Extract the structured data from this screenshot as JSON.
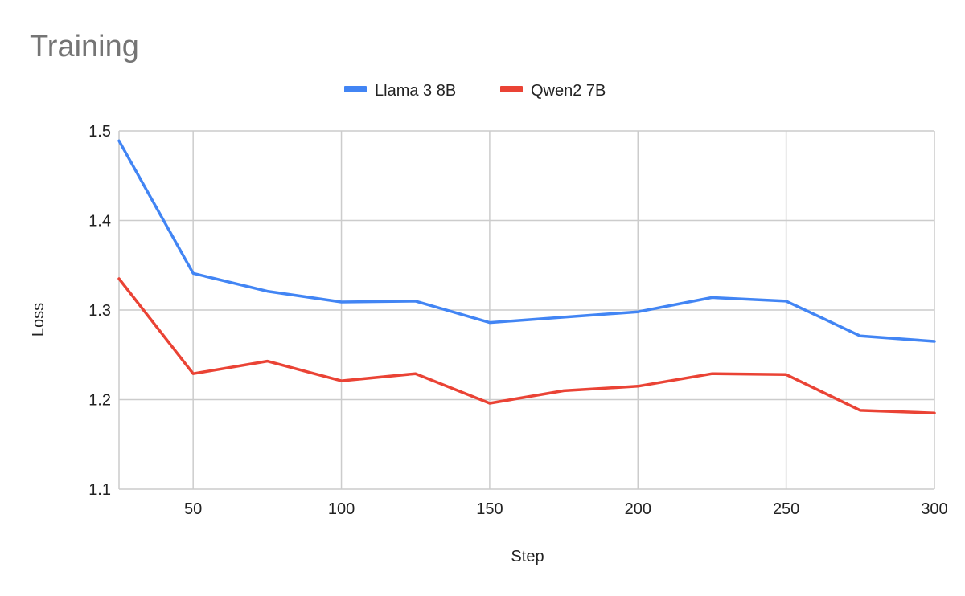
{
  "chart_data": {
    "type": "line",
    "title": "Training",
    "xlabel": "Step",
    "ylabel": "Loss",
    "x": [
      25,
      50,
      75,
      100,
      125,
      150,
      175,
      200,
      225,
      250,
      275,
      300
    ],
    "xlim": [
      25,
      300
    ],
    "ylim": [
      1.1,
      1.5
    ],
    "x_ticks": [
      50,
      100,
      150,
      200,
      250,
      300
    ],
    "y_ticks": [
      1.1,
      1.2,
      1.3,
      1.4,
      1.5
    ],
    "y_tick_labels": [
      "1.1",
      "1.2",
      "1.3",
      "1.4",
      "1.5"
    ],
    "grid": true,
    "legend_position": "top",
    "series": [
      {
        "name": "Llama 3 8B",
        "color": "#4285f4",
        "values": [
          1.489,
          1.341,
          1.321,
          1.309,
          1.31,
          1.286,
          1.292,
          1.298,
          1.314,
          1.31,
          1.271,
          1.265
        ]
      },
      {
        "name": "Qwen2 7B",
        "color": "#ea4335",
        "values": [
          1.335,
          1.229,
          1.243,
          1.221,
          1.229,
          1.196,
          1.21,
          1.215,
          1.229,
          1.228,
          1.188,
          1.185
        ]
      }
    ]
  }
}
